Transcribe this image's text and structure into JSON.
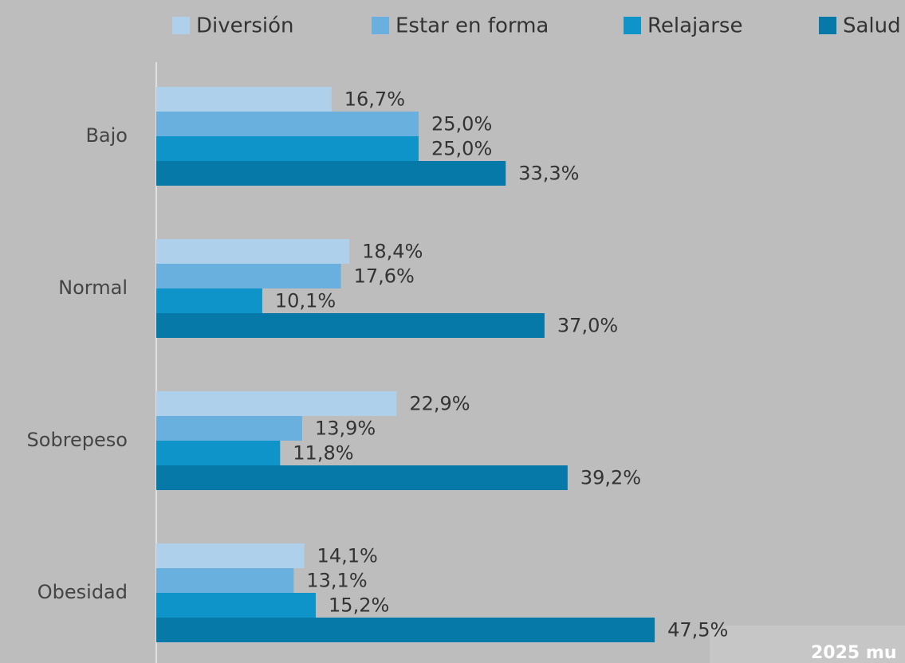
{
  "chart_data": {
    "type": "bar",
    "orientation": "horizontal",
    "categories": [
      "Bajo",
      "Normal",
      "Sobrepeso",
      "Obesidad"
    ],
    "series": [
      {
        "name": "Diversión",
        "color": "#aed0ea",
        "values": [
          16.7,
          18.4,
          22.9,
          14.1
        ],
        "value_labels": [
          "16,7%",
          "18,4%",
          "22,9%",
          "14,1%"
        ]
      },
      {
        "name": "Estar en forma",
        "color": "#6ab0de",
        "values": [
          25.0,
          17.6,
          13.9,
          13.1
        ],
        "value_labels": [
          "25,0%",
          "17,6%",
          "13,9%",
          "13,1%"
        ]
      },
      {
        "name": "Relajarse",
        "color": "#0e94c9",
        "values": [
          25.0,
          10.1,
          11.8,
          15.2
        ],
        "value_labels": [
          "25,0%",
          "10,1%",
          "11,8%",
          "15,2%"
        ]
      },
      {
        "name": "Salud",
        "color": "#0779a8",
        "values": [
          33.3,
          37.0,
          39.2,
          47.5
        ],
        "value_labels": [
          "33,3%",
          "37,0%",
          "39,2%",
          "47,5%"
        ]
      }
    ],
    "xlim": [
      0,
      70
    ],
    "legend": "top",
    "watermark": "2025 mu"
  }
}
